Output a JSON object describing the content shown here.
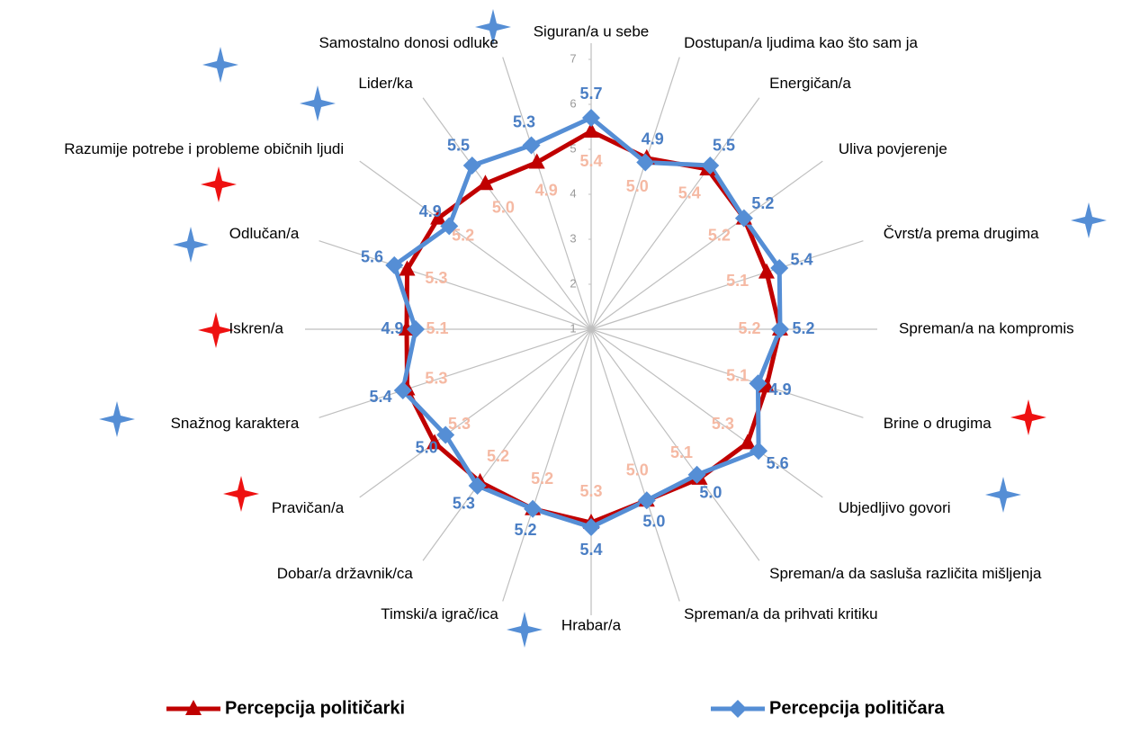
{
  "chart_data": {
    "type": "radar",
    "categories": [
      "Siguran/a u sebe",
      "Dostupan/a ljudima kao što sam ja",
      "Energičan/a",
      "Uliva povjerenje",
      "Čvrst/a prema drugima",
      "Spreman/a na kompromis",
      "Brine o drugima",
      "Ubjedljivo govori",
      "Spreman/a da sasluša različita mišljenja",
      "Spreman/a da prihvati kritiku",
      "Hrabar/a",
      "Timski/a igrač/ica",
      "Dobar/a državnik/ca",
      "Pravičan/a",
      "Snažnog karaktera",
      "Iskren/a",
      "Odlučan/a",
      "Razumije potrebe i probleme običnih ljudi",
      "Lider/ka",
      "Samostalno donosi odluke"
    ],
    "series": [
      {
        "name": "Percepcija političarki",
        "color": "#c00000",
        "label_color": "#f5b9a3",
        "marker": "triangle",
        "values": [
          5.4,
          5.0,
          5.4,
          5.2,
          5.1,
          5.2,
          5.1,
          5.3,
          5.1,
          5.0,
          5.3,
          5.2,
          5.2,
          5.3,
          5.3,
          5.1,
          5.3,
          5.2,
          5.0,
          4.9
        ],
        "value_labels": [
          "5.4",
          "5.0",
          "5.4",
          "5.2",
          "5.1",
          "5.2",
          "5.1",
          "5.3",
          "5.1",
          "5.0",
          "5.3",
          "5.2",
          "5.2",
          "5.3",
          "5.3",
          "5.1",
          "5.3",
          "5.2",
          "5.0",
          "4.9"
        ]
      },
      {
        "name": "Percepcija političara",
        "color": "#558ed5",
        "label_color": "#4a7ec4",
        "marker": "diamond",
        "values": [
          5.7,
          4.9,
          5.5,
          5.2,
          5.4,
          5.2,
          4.9,
          5.6,
          5.0,
          5.0,
          5.4,
          5.2,
          5.3,
          5.0,
          5.4,
          4.9,
          5.6,
          4.9,
          5.5,
          5.3
        ],
        "value_labels": [
          "5.7",
          "4.9",
          "5.5",
          "5.2",
          "5.4",
          "5.2",
          "4.9",
          "5.6",
          "5.0",
          "5.0",
          "5.4",
          "5.2",
          "5.3",
          "5.0",
          "5.4",
          "4.9",
          "5.6",
          "4.9",
          "5.5",
          "5.3"
        ]
      }
    ],
    "ylim": [
      1,
      7
    ],
    "yticks": [
      1,
      2,
      3,
      4,
      5,
      6,
      7
    ]
  }
}
